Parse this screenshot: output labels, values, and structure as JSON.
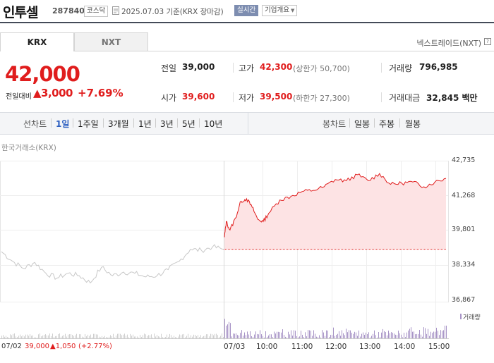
{
  "header": {
    "name": "인투셀",
    "code": "287840",
    "market": "코스닥",
    "date": "2025.07.03",
    "basis": "기준(KRX 장마감)",
    "realtime_label": "실시간",
    "overview_label": "기업개요"
  },
  "tabs": {
    "krx": "KRX",
    "nxt": "NXT"
  },
  "nxt_link": "넥스트레이드(NXT)",
  "quote": {
    "price": "42,000",
    "change_label": "전일대비",
    "change_arrow": "▲",
    "change_value": "3,000",
    "change_pct": "+7.69%"
  },
  "stats": {
    "prev_close_label": "전일",
    "prev_close": "39,000",
    "open_label": "시가",
    "open": "39,600",
    "high_label": "고가",
    "high": "42,300",
    "upper_limit": "(상한가 50,700)",
    "low_label": "저가",
    "low": "39,500",
    "lower_limit": "(하한가 27,300)",
    "volume_label": "거래량",
    "volume": "796,985",
    "amount_label": "거래대금",
    "amount": "32,845",
    "amount_unit": "백만"
  },
  "line_ranges": {
    "label": "선차트",
    "items": [
      "1일",
      "1주일",
      "3개월",
      "1년",
      "3년",
      "5년",
      "10년"
    ],
    "selected": "1일"
  },
  "candle_ranges": {
    "label": "봉차트",
    "items": [
      "일봉",
      "주봉",
      "월봉"
    ]
  },
  "chart_title": "한국거래소(KRX)",
  "volume_legend": "거래량",
  "prev_summary": {
    "date": "07/02",
    "price": "39,000",
    "change": "▲1,050",
    "pct": "(+2.77%)"
  },
  "colors": {
    "up": "#e01d1d",
    "fill": "#fde3e4",
    "prev_line": "#c8c8c8",
    "volume": "#a793c6",
    "header_line": "#444b58"
  },
  "chart_data": {
    "type": "line",
    "title": "",
    "xlabel": "",
    "ylabel": "",
    "y_ticks": [
      "42,735",
      "41,268",
      "39,801",
      "38,334",
      "36,867"
    ],
    "x_ticks": [
      "07/03",
      "10:00",
      "11:00",
      "12:00",
      "13:00",
      "14:00",
      "15:00"
    ],
    "ylim": [
      36867,
      42735
    ],
    "reference_price": 39000,
    "series": [
      {
        "name": "07/02",
        "times": [
          0,
          0.3,
          0.6,
          0.9,
          1.2,
          1.5,
          1.8,
          2.1,
          2.4,
          2.7,
          3.0,
          3.3,
          3.6,
          3.9,
          4.2,
          4.5,
          4.8,
          5.1,
          5.4,
          5.7,
          6.0
        ],
        "values": [
          38950,
          38550,
          38250,
          38500,
          38050,
          37850,
          38050,
          37950,
          37650,
          38300,
          37950,
          38100,
          38050,
          37900,
          37950,
          38200,
          38550,
          39050,
          39000,
          39150,
          39050
        ]
      },
      {
        "name": "07/03",
        "times": [
          0,
          0.05,
          0.15,
          0.3,
          0.45,
          0.6,
          0.75,
          0.9,
          1.05,
          1.2,
          1.5,
          1.8,
          2.1,
          2.4,
          2.7,
          3.0,
          3.3,
          3.6,
          3.9,
          4.2,
          4.5,
          4.8,
          5.1,
          5.4,
          5.7,
          6.0
        ],
        "values": [
          39550,
          40200,
          39850,
          40350,
          41050,
          41150,
          40800,
          40300,
          40200,
          40550,
          41100,
          41250,
          41450,
          41500,
          41650,
          41950,
          41900,
          42150,
          41900,
          42200,
          41750,
          41800,
          41850,
          41650,
          41850,
          42000
        ]
      }
    ]
  }
}
